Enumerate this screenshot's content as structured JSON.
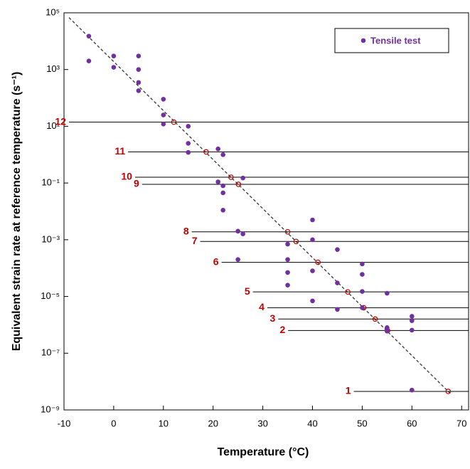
{
  "chart_data": {
    "type": "scatter",
    "x_label": "Temperature (°C)",
    "y_label": "Equivalent strain rate at reference temperature (s⁻¹)",
    "xlim": [
      -10,
      71.4
    ],
    "xticks": [
      -10,
      0,
      10,
      20,
      30,
      40,
      50,
      60,
      70
    ],
    "ylim": [
      1e-09,
      100000
    ],
    "log_y": true,
    "yticks": [
      {
        "value": 1e-09,
        "label": "10⁻⁹"
      },
      {
        "value": 1e-07,
        "label": "10⁻⁷"
      },
      {
        "value": 1e-05,
        "label": "10⁻⁵"
      },
      {
        "value": 0.001,
        "label": "10⁻³"
      },
      {
        "value": 0.1,
        "label": "10⁻¹"
      },
      {
        "value": 10,
        "label": "10¹"
      },
      {
        "value": 1000,
        "label": "10³"
      },
      {
        "value": 100000,
        "label": "10⁵"
      }
    ],
    "legend": "upper right",
    "series": [
      {
        "name": "Tensile test",
        "color": "#7030a0",
        "x": [
          -5,
          -5,
          0,
          0,
          5,
          5,
          5,
          5,
          10,
          10,
          10,
          15,
          15,
          15,
          21,
          22,
          21,
          22,
          22,
          22,
          26,
          25,
          26,
          25,
          35,
          35,
          35,
          35,
          40,
          40,
          40,
          40,
          45,
          45,
          45,
          50,
          50,
          50,
          50,
          55,
          55,
          55,
          60,
          60,
          60,
          60
        ],
        "values": [
          15000,
          2000,
          3000,
          1200,
          3000,
          1000,
          350,
          180,
          90,
          25,
          12,
          10,
          2.5,
          1.2,
          1.6,
          1,
          0.11,
          0.08,
          0.045,
          0.011,
          0.15,
          0.002,
          0.0016,
          0.0002,
          0.0007,
          0.0002,
          7e-05,
          2.5e-05,
          0.005,
          0.001,
          8e-05,
          7e-06,
          0.00045,
          3e-05,
          3.5e-06,
          0.00014,
          6e-05,
          1.5e-05,
          4e-06,
          1.3e-05,
          8e-07,
          6e-07,
          2e-06,
          1.4e-06,
          6.5e-07,
          5e-09
        ]
      }
    ],
    "trend_line": {
      "color": "#333333",
      "x": [
        -9,
        67.6
      ],
      "values": [
        68000,
        4e-09
      ]
    },
    "reference_lines": [
      {
        "label": "1",
        "x_start": 48.3,
        "value": 4.5e-09,
        "intersect_x": 67.3
      },
      {
        "label": "2",
        "x_start": 35.1,
        "value": 6.3e-07,
        "intersect_x": 55.1
      },
      {
        "label": "3",
        "x_start": 33.1,
        "value": 1.6e-06,
        "intersect_x": 52.6
      },
      {
        "label": "4",
        "x_start": 30.9,
        "value": 4e-06,
        "intersect_x": 50.3
      },
      {
        "label": "5",
        "x_start": 28,
        "value": 1.45e-05,
        "intersect_x": 47.1
      },
      {
        "label": "6",
        "x_start": 21.7,
        "value": 0.00016,
        "intersect_x": 41.1
      },
      {
        "label": "7",
        "x_start": 17.4,
        "value": 0.00087,
        "intersect_x": 36.7
      },
      {
        "label": "8",
        "x_start": 15.7,
        "value": 0.0019,
        "intersect_x": 35
      },
      {
        "label": "9",
        "x_start": 5.7,
        "value": 0.09,
        "intersect_x": 25.1
      },
      {
        "label": "10",
        "x_start": 4.3,
        "value": 0.16,
        "intersect_x": 23.6
      },
      {
        "label": "11",
        "x_start": 2.9,
        "value": 1.25,
        "intersect_x": 18.6
      },
      {
        "label": "12",
        "x_start": -9,
        "value": 14,
        "intersect_x": 12.1
      }
    ]
  }
}
